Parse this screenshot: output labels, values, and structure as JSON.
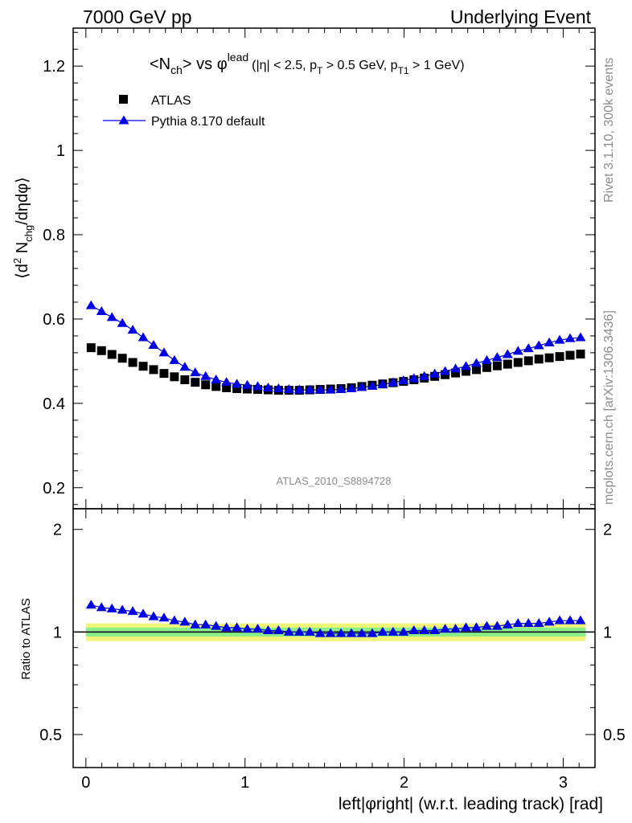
{
  "header": {
    "left": "7000 GeV pp",
    "right": "Underlying Event"
  },
  "side_text": {
    "top": "Rivet 3.1.10,  300k events",
    "bottom": "mcplots.cern.ch [arXiv:1306.3436]"
  },
  "chart_data": [
    {
      "type": "scatter",
      "panel": "main",
      "title_parts": {
        "main_a": "<N",
        "main_sub": "ch",
        "main_b": "> vs ",
        "phi": "φ",
        "phi_sup": "lead",
        "cuts_a": "(|η| < 2.5, p",
        "cuts_sub1": "T",
        "cuts_b": " > 0.5 GeV, p",
        "cuts_sub2": "T1",
        "cuts_c": " > 1 GeV)"
      },
      "ylabel_parts": {
        "a": "⟨d",
        "sup": "2",
        "b": " N",
        "sub": "chg",
        "c": "/dηdφ⟩"
      },
      "watermark": "ATLAS_2010_S8894728",
      "xlim": [
        -0.08,
        3.2
      ],
      "ylim": [
        0.15,
        1.29
      ],
      "x_ticks": [
        0,
        1,
        2,
        3
      ],
      "y_ticks": [
        0.2,
        0.4,
        0.6,
        0.8,
        1.0,
        1.2
      ],
      "y_tick_labels": [
        "0.2",
        "0.4",
        "0.6",
        "0.8",
        "1",
        "1.2"
      ],
      "legend": [
        {
          "label": "ATLAS",
          "marker": "square",
          "color": "#000000"
        },
        {
          "label": "Pythia 8.170 default",
          "marker": "triangle",
          "color": "#0000e6"
        }
      ],
      "x": [
        0.0327,
        0.0982,
        0.1636,
        0.2291,
        0.2945,
        0.36,
        0.4254,
        0.4909,
        0.5563,
        0.6218,
        0.6872,
        0.7527,
        0.8181,
        0.8836,
        0.949,
        1.0145,
        1.0799,
        1.1454,
        1.2108,
        1.2763,
        1.3417,
        1.4072,
        1.4726,
        1.5381,
        1.6035,
        1.669,
        1.7344,
        1.7999,
        1.8653,
        1.9308,
        1.9962,
        2.0617,
        2.1271,
        2.1926,
        2.258,
        2.3235,
        2.3889,
        2.4544,
        2.5198,
        2.5853,
        2.6507,
        2.7162,
        2.7816,
        2.8471,
        2.9125,
        2.978,
        3.0434,
        3.1089
      ],
      "series": [
        {
          "name": "ATLAS",
          "values": [
            0.532,
            0.525,
            0.516,
            0.507,
            0.497,
            0.488,
            0.48,
            0.471,
            0.463,
            0.456,
            0.45,
            0.444,
            0.44,
            0.437,
            0.435,
            0.434,
            0.433,
            0.432,
            0.431,
            0.431,
            0.431,
            0.432,
            0.433,
            0.434,
            0.435,
            0.437,
            0.44,
            0.443,
            0.446,
            0.449,
            0.452,
            0.456,
            0.46,
            0.464,
            0.468,
            0.472,
            0.476,
            0.48,
            0.485,
            0.489,
            0.493,
            0.497,
            0.501,
            0.505,
            0.508,
            0.511,
            0.514,
            0.517
          ]
        },
        {
          "name": "Pythia 8.170 default",
          "values": [
            0.632,
            0.618,
            0.604,
            0.59,
            0.574,
            0.556,
            0.538,
            0.52,
            0.502,
            0.486,
            0.473,
            0.464,
            0.456,
            0.45,
            0.446,
            0.443,
            0.44,
            0.437,
            0.435,
            0.433,
            0.432,
            0.432,
            0.432,
            0.432,
            0.433,
            0.435,
            0.438,
            0.441,
            0.445,
            0.449,
            0.454,
            0.459,
            0.464,
            0.47,
            0.476,
            0.482,
            0.488,
            0.495,
            0.502,
            0.509,
            0.516,
            0.524,
            0.53,
            0.537,
            0.544,
            0.55,
            0.554,
            0.556
          ]
        }
      ]
    },
    {
      "type": "scatter",
      "panel": "ratio",
      "ylabel": "Ratio to ATLAS",
      "xlabel": "left|φright| (w.r.t. leading track) [rad]",
      "xlim": [
        -0.08,
        3.2
      ],
      "ylim": [
        0.4,
        2.3
      ],
      "x_ticks": [
        0,
        1,
        2,
        3
      ],
      "x_tick_labels": [
        "0",
        "1",
        "2",
        "3"
      ],
      "y_ticks": [
        0.5,
        1,
        2
      ],
      "y_tick_labels": [
        "0.5",
        "1",
        "2"
      ],
      "reference_line": 1,
      "band_inner": [
        0.97,
        1.03
      ],
      "band_outer": [
        0.94,
        1.06
      ],
      "band_colors": {
        "inner": "#88ee88",
        "outer": "#f0f57a"
      },
      "series": [
        {
          "name": "Pythia 8.170 default",
          "values": [
            1.2,
            1.18,
            1.17,
            1.16,
            1.15,
            1.13,
            1.11,
            1.1,
            1.08,
            1.07,
            1.05,
            1.05,
            1.04,
            1.03,
            1.03,
            1.02,
            1.02,
            1.01,
            1.01,
            1.0,
            1.0,
            1.0,
            0.99,
            0.99,
            0.99,
            0.99,
            0.99,
            0.99,
            1.0,
            1.0,
            1.0,
            1.01,
            1.01,
            1.01,
            1.02,
            1.02,
            1.03,
            1.03,
            1.04,
            1.04,
            1.05,
            1.06,
            1.06,
            1.06,
            1.07,
            1.08,
            1.08,
            1.08
          ]
        }
      ]
    }
  ]
}
